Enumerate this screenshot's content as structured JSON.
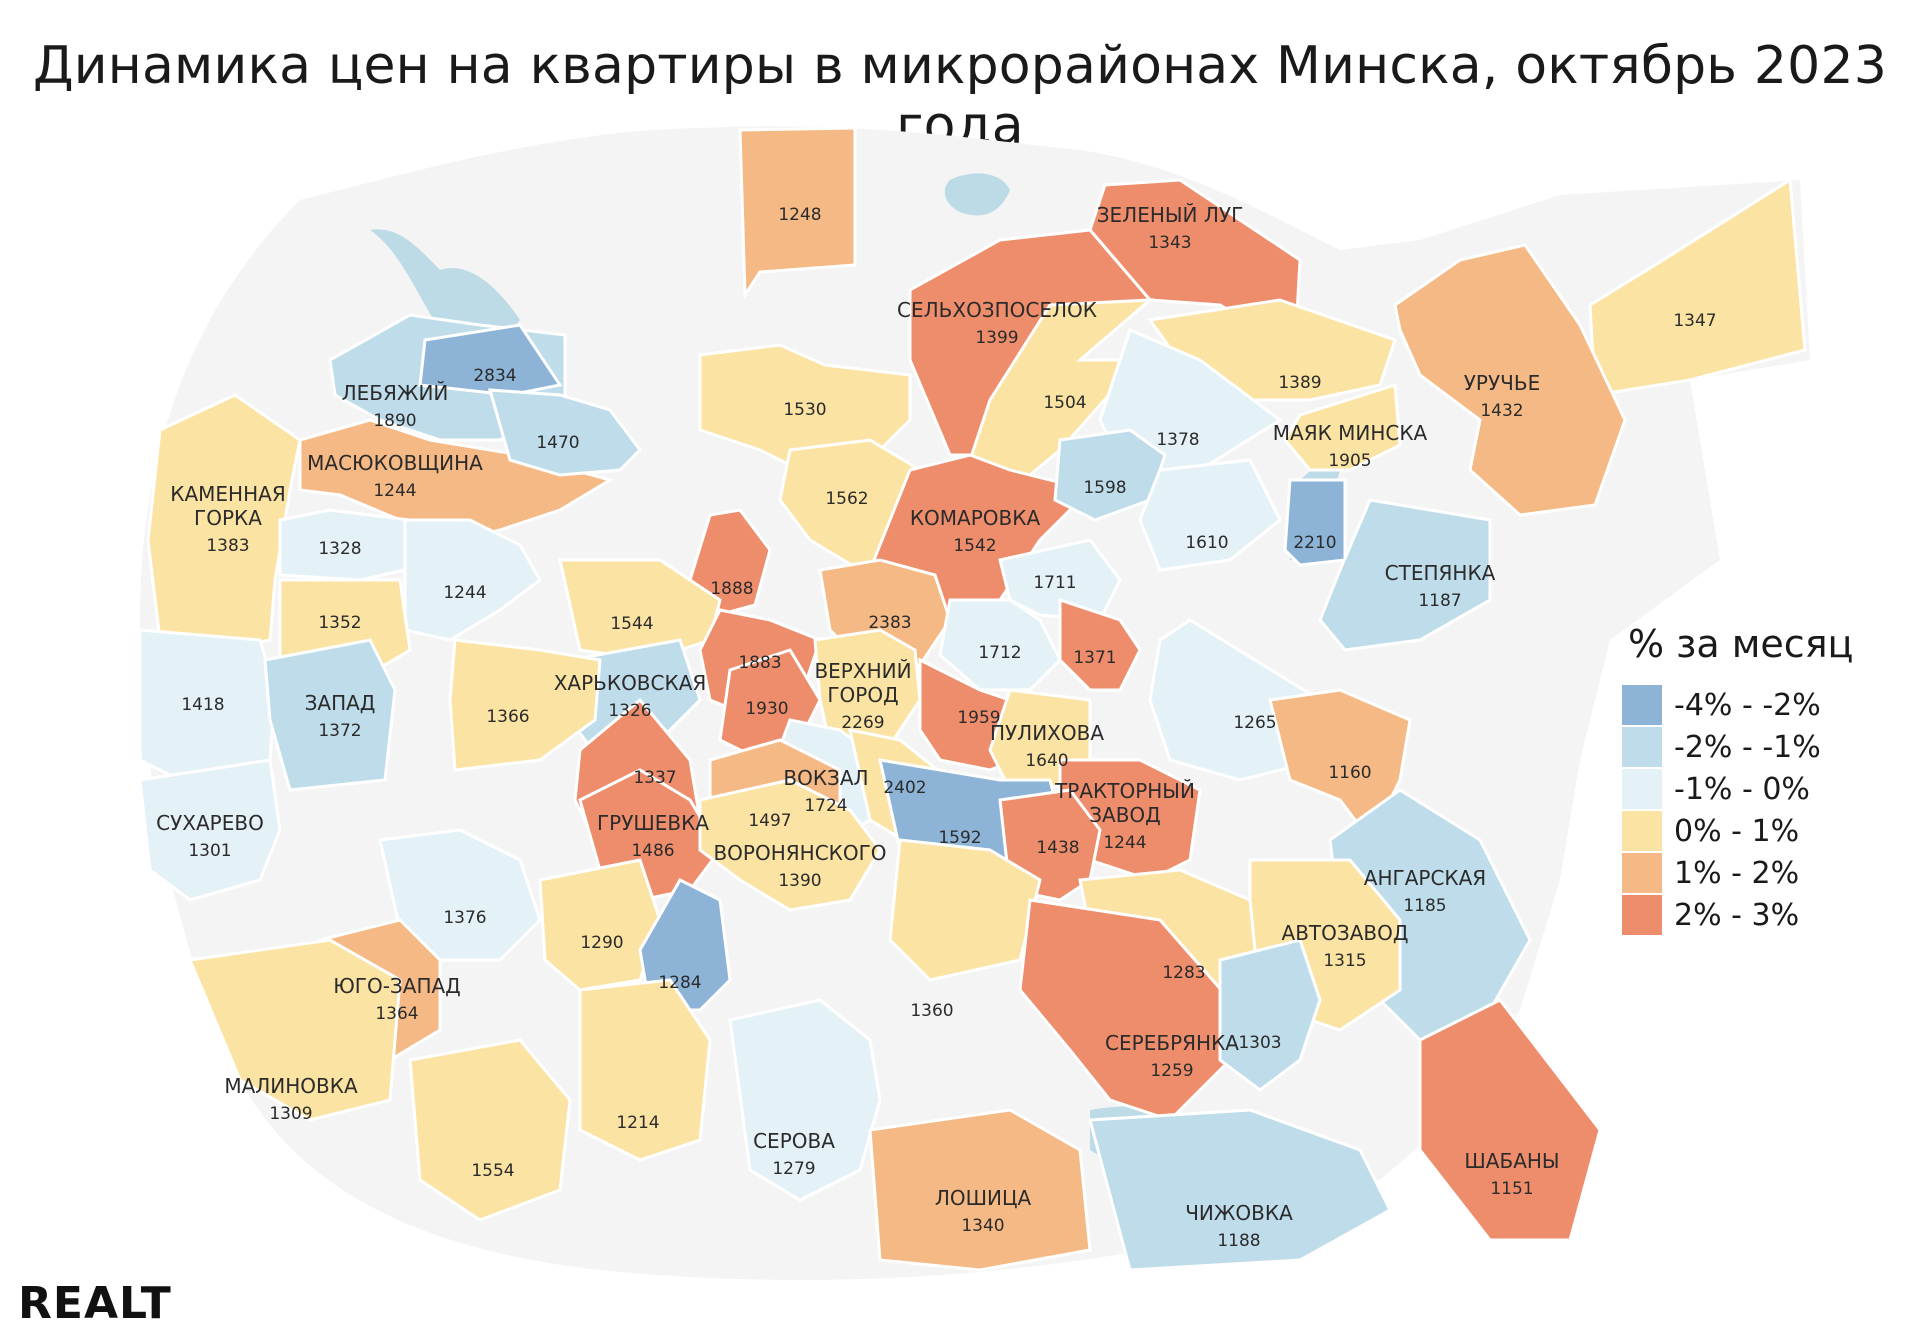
{
  "title": "Динамика цен на квартиры в микрорайонах Минска, октябрь 2023 года",
  "logo_text": "REALT",
  "legend": {
    "title": "% за месяц",
    "items": [
      {
        "label": "-4% - -2%",
        "color": "#8db4d6"
      },
      {
        "label": "-2% - -1%",
        "color": "#bedcea"
      },
      {
        "label": "-1% - 0%",
        "color": "#e4f1f7"
      },
      {
        "label": "0% - 1%",
        "color": "#fbe3a3"
      },
      {
        "label": "1% - 2%",
        "color": "#f5b985"
      },
      {
        "label": "2% - 3%",
        "color": "#ee8d6c"
      }
    ]
  },
  "colors": {
    "background_city": "#f4f4f4",
    "water": "#bcdbe7",
    "border": "#ffffff"
  },
  "districts": [
    {
      "name": "",
      "value": "1248",
      "class": "1% - 2%"
    },
    {
      "name": "ЗЕЛЕНЫЙ ЛУГ",
      "value": "1343",
      "class": "2% - 3%"
    },
    {
      "name": "СЕЛЬХОЗПОСЕЛОК",
      "value": "1399",
      "class": "2% - 3%"
    },
    {
      "name": "",
      "value": "1347",
      "class": "0% - 1%"
    },
    {
      "name": "УРУЧЬЕ",
      "value": "1432",
      "class": "1% - 2%"
    },
    {
      "name": "ЛЕБЯЖИЙ",
      "value": "1890",
      "class": "-2% - -1%"
    },
    {
      "name": "",
      "value": "2834",
      "class": "-4% - -2%"
    },
    {
      "name": "",
      "value": "1530",
      "class": "0% - 1%"
    },
    {
      "name": "",
      "value": "1504",
      "class": "0% - 1%"
    },
    {
      "name": "",
      "value": "1389",
      "class": "0% - 1%"
    },
    {
      "name": "МАЯК МИНСКА",
      "value": "1905",
      "class": "0% - 1%"
    },
    {
      "name": "МАСЮКОВЩИНА",
      "value": "1244",
      "class": "1% - 2%"
    },
    {
      "name": "",
      "value": "1470",
      "class": "-2% - -1%"
    },
    {
      "name": "",
      "value": "1378",
      "class": "-1% - 0%"
    },
    {
      "name": "КАМЕННАЯ ГОРКА",
      "value": "1383",
      "class": "0% - 1%"
    },
    {
      "name": "",
      "value": "1562",
      "class": "0% - 1%"
    },
    {
      "name": "КОМАРОВКА",
      "value": "1542",
      "class": "2% - 3%"
    },
    {
      "name": "",
      "value": "1598",
      "class": "-2% - -1%"
    },
    {
      "name": "",
      "value": "1328",
      "class": "-1% - 0%"
    },
    {
      "name": "",
      "value": "1610",
      "class": "-1% - 0%"
    },
    {
      "name": "",
      "value": "2210",
      "class": "-4% - -2%"
    },
    {
      "name": "СТЕПЯНКА",
      "value": "1187",
      "class": "-2% - -1%"
    },
    {
      "name": "",
      "value": "1888",
      "class": "2% - 3%"
    },
    {
      "name": "",
      "value": "1244",
      "class": "-1% - 0%"
    },
    {
      "name": "",
      "value": "2383",
      "class": "1% - 2%"
    },
    {
      "name": "",
      "value": "1711",
      "class": "-1% - 0%"
    },
    {
      "name": "",
      "value": "1712",
      "class": "-1% - 0%"
    },
    {
      "name": "",
      "value": "1352",
      "class": "0% - 1%"
    },
    {
      "name": "",
      "value": "1544",
      "class": "0% - 1%"
    },
    {
      "name": "",
      "value": "1883",
      "class": "2% - 3%"
    },
    {
      "name": "ВЕРХНИЙ ГОРОД",
      "value": "2269",
      "class": "0% - 1%"
    },
    {
      "name": "",
      "value": "1371",
      "class": "2% - 3%"
    },
    {
      "name": "",
      "value": "1418",
      "class": "-1% - 0%"
    },
    {
      "name": "ЗАПАД",
      "value": "1372",
      "class": "-2% - -1%"
    },
    {
      "name": "ХАРЬКОВСКАЯ",
      "value": "1326",
      "class": "-2% - -1%"
    },
    {
      "name": "",
      "value": "1366",
      "class": "0% - 1%"
    },
    {
      "name": "",
      "value": "1930",
      "class": "2% - 3%"
    },
    {
      "name": "",
      "value": "1959",
      "class": "2% - 3%"
    },
    {
      "name": "ПУЛИХОВА",
      "value": "1640",
      "class": "0% - 1%"
    },
    {
      "name": "",
      "value": "1265",
      "class": "-1% - 0%"
    },
    {
      "name": "ВОКЗАЛ",
      "value": "1724",
      "class": "-1% - 0%"
    },
    {
      "name": "",
      "value": "2402",
      "class": "0% - 1%"
    },
    {
      "name": "",
      "value": "1592",
      "class": "-4% - -2%"
    },
    {
      "name": "",
      "value": "1160",
      "class": "1% - 2%"
    },
    {
      "name": "",
      "value": "1337",
      "class": "2% - 3%"
    },
    {
      "name": "ТРАКТОРНЫЙ ЗАВОД",
      "value": "1244",
      "class": "2% - 3%"
    },
    {
      "name": "",
      "value": "1438",
      "class": "2% - 3%"
    },
    {
      "name": "СУХАРЕВО",
      "value": "1301",
      "class": "-1% - 0%"
    },
    {
      "name": "",
      "value": "1497",
      "class": "1% - 2%"
    },
    {
      "name": "ГРУШЕВКА",
      "value": "1486",
      "class": "2% - 3%"
    },
    {
      "name": "ВОРОНЯНСКОГО",
      "value": "1390",
      "class": "0% - 1%"
    },
    {
      "name": "АНГАРСКАЯ",
      "value": "1185",
      "class": "-2% - -1%"
    },
    {
      "name": "",
      "value": "1376",
      "class": "-1% - 0%"
    },
    {
      "name": "",
      "value": "1290",
      "class": "0% - 1%"
    },
    {
      "name": "АВТОЗАВОД",
      "value": "1315",
      "class": "0% - 1%"
    },
    {
      "name": "",
      "value": "1283",
      "class": "0% - 1%"
    },
    {
      "name": "",
      "value": "1360",
      "class": "0% - 1%"
    },
    {
      "name": "ЮГО-ЗАПАД",
      "value": "1364",
      "class": "1% - 2%"
    },
    {
      "name": "",
      "value": "1284",
      "class": "-4% - -2%"
    },
    {
      "name": "СЕРЕБРЯНКА",
      "value": "1259",
      "class": "2% - 3%"
    },
    {
      "name": "",
      "value": "1303",
      "class": "-2% - -1%"
    },
    {
      "name": "МАЛИНОВКА",
      "value": "1309",
      "class": "0% - 1%"
    },
    {
      "name": "",
      "value": "1214",
      "class": "0% - 1%"
    },
    {
      "name": "СЕРОВА",
      "value": "1279",
      "class": "-1% - 0%"
    },
    {
      "name": "ШАБАНЫ",
      "value": "1151",
      "class": "2% - 3%"
    },
    {
      "name": "",
      "value": "1554",
      "class": "0% - 1%"
    },
    {
      "name": "ЛОШИЦА",
      "value": "1340",
      "class": "1% - 2%"
    },
    {
      "name": "ЧИЖОВКА",
      "value": "1188",
      "class": "-2% - -1%"
    }
  ]
}
